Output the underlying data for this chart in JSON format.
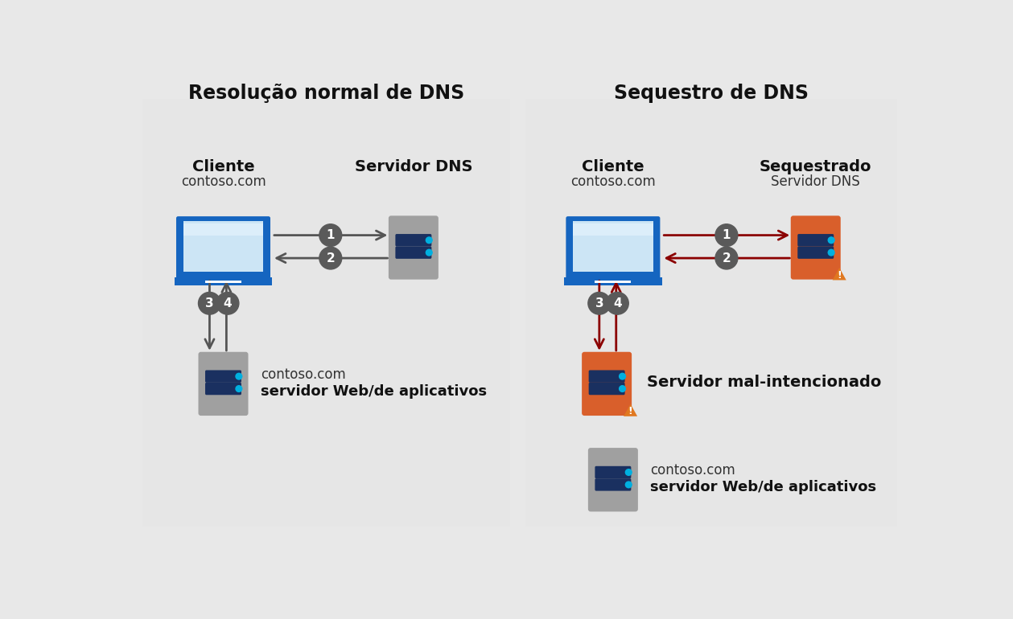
{
  "bg_color": "#e8e8e8",
  "panel_color": "#e0e0e0",
  "title_left": "Resolução normal de DNS",
  "title_right": "Sequestro de DNS",
  "arrow_normal": "#555555",
  "arrow_hijack": "#8B0000",
  "server_normal_color": "#a0a0a0",
  "server_hijack_color": "#d95f2b",
  "laptop_screen_color": "#cce5f5",
  "laptop_frame_color": "#1565c0",
  "circle_color": "#5a5a5a",
  "circle_text_color": "#ffffff",
  "label_client": "Cliente",
  "label_contoso": "contoso.com",
  "label_dns_normal": "Servidor DNS",
  "label_dns_hijack_top": "Sequestrado",
  "label_dns_hijack_bot": "Servidor DNS",
  "label_web_server_top": "contoso.com",
  "label_web_server_bot": "servidor Web/de aplicativos",
  "label_malicious": "Servidor mal-intencionado",
  "warning_color": "#e07820",
  "strip_color": "#1a3060",
  "led_color": "#00b0e0"
}
